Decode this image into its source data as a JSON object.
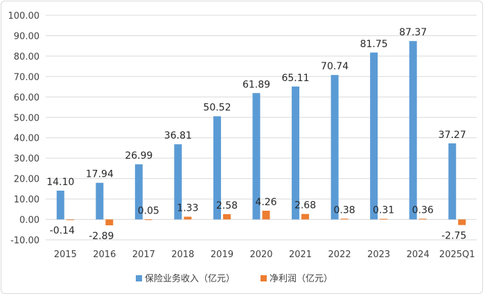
{
  "chart_data": {
    "type": "bar",
    "categories": [
      "2015",
      "2016",
      "2017",
      "2018",
      "2019",
      "2020",
      "2021",
      "2022",
      "2023",
      "2024",
      "2025Q1"
    ],
    "series": [
      {
        "name": "保险业务收入（亿元）",
        "color": "#5b9bd5",
        "values": [
          14.1,
          17.94,
          26.99,
          36.81,
          50.52,
          61.89,
          65.11,
          70.74,
          81.75,
          87.37,
          37.27
        ],
        "labels": [
          "14.10",
          "17.94",
          "26.99",
          "36.81",
          "50.52",
          "61.89",
          "65.11",
          "70.74",
          "81.75",
          "87.37",
          "37.27"
        ]
      },
      {
        "name": "净利润（亿元）",
        "color": "#ed7d31",
        "values": [
          -0.14,
          -2.89,
          0.05,
          1.33,
          2.58,
          4.26,
          2.68,
          0.38,
          0.31,
          0.36,
          -2.75
        ],
        "labels": [
          "-0.14",
          "-2.89",
          "0.05",
          "1.33",
          "2.58",
          "4.26",
          "2.68",
          "0.38",
          "0.31",
          "0.36",
          "-2.75"
        ]
      }
    ],
    "yticks": [
      "100.00",
      "90.00",
      "80.00",
      "70.00",
      "60.00",
      "50.00",
      "40.00",
      "30.00",
      "20.00",
      "10.00",
      "0.00",
      "-10.00"
    ],
    "ylim": [
      -10,
      100
    ],
    "grid": true,
    "legend": "bottom-center"
  }
}
